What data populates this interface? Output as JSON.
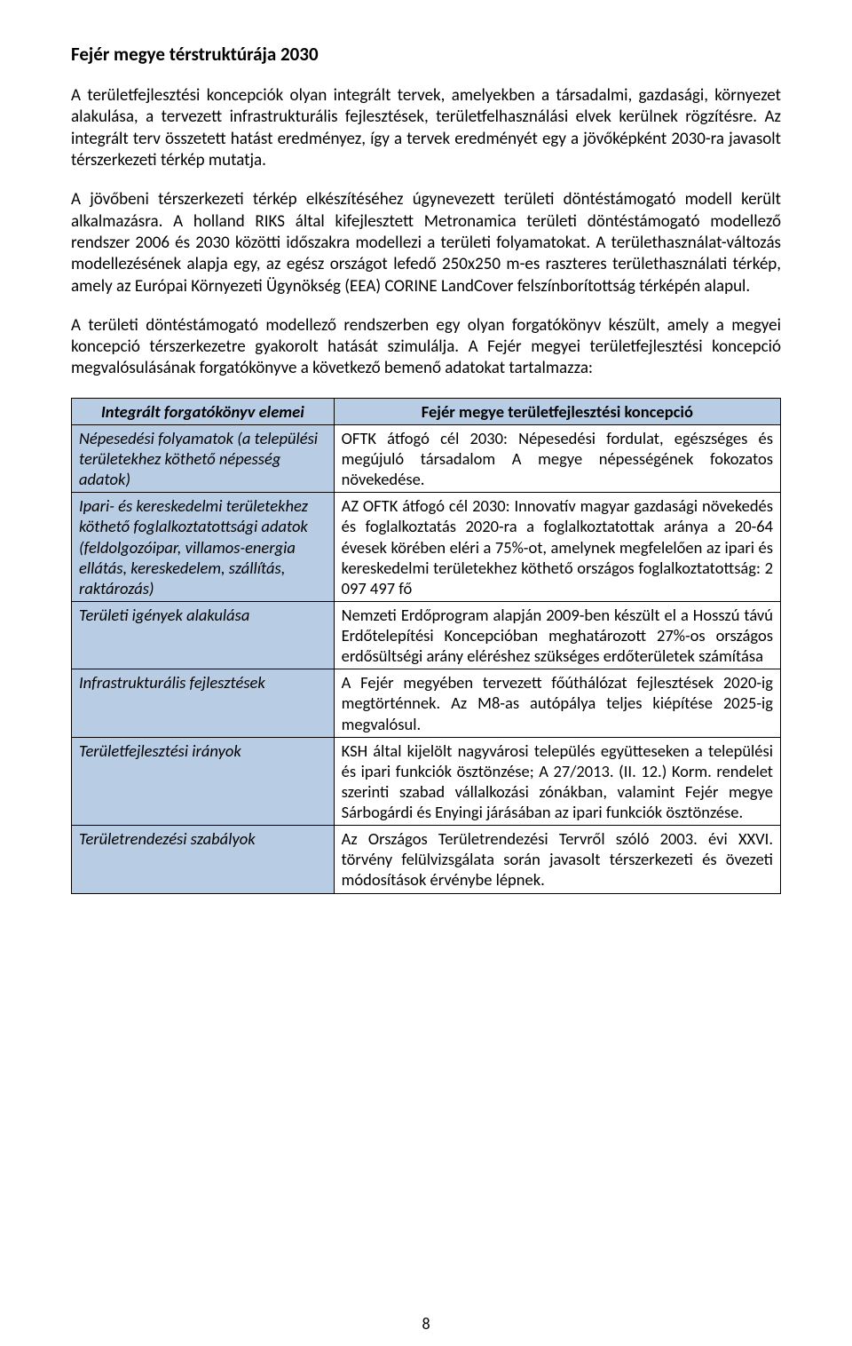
{
  "title": "Fejér megye térstruktúrája 2030",
  "paragraphs": {
    "p1": "A területfejlesztési koncepciók olyan integrált tervek, amelyekben a társadalmi, gazdasági, környezet alakulása, a tervezett infrastrukturális fejlesztések, területfelhasználási elvek kerülnek rögzítésre. Az integrált terv összetett hatást eredményez, így a tervek eredményét egy a jövőképként 2030-ra javasolt térszerkezeti térkép mutatja.",
    "p2": "A jövőbeni térszerkezeti térkép elkészítéséhez úgynevezett területi döntéstámogató modell került alkalmazásra. A holland RIKS által kifejlesztett Metronamica területi döntéstámogató modellező rendszer 2006 és 2030 közötti időszakra modellezi a területi folyamatokat. A területhasználat-változás modellezésének alapja egy, az egész országot lefedő 250x250 m-es raszteres területhasználati térkép, amely az Európai Környezeti Ügynökség (EEA) CORINE LandCover felszínborítottság térképén alapul.",
    "p3": "A területi döntéstámogató modellező rendszerben egy olyan forgatókönyv készült, amely a megyei koncepció térszerkezetre gyakorolt hatását szimulálja. A Fejér megyei területfejlesztési koncepció megvalósulásának forgatókönyve a következő bemenő adatokat tartalmazza:"
  },
  "table": {
    "header_left": "Integrált forgatókönyv elemei",
    "header_right": "Fejér megye területfejlesztési koncepció",
    "rows": [
      {
        "label": "Népesedési folyamatok (a települési területekhez köthető népesség adatok)",
        "value": "OFTK átfogó cél 2030: Népesedési fordulat, egészséges és megújuló társadalom\nA megye népességének fokozatos növekedése."
      },
      {
        "label": "Ipari- és kereskedelmi területekhez köthető foglalkoztatottsági adatok (feldolgozóipar, villamos-energia ellátás, kereskedelem, szállítás, raktározás)",
        "value": "AZ OFTK átfogó cél 2030: Innovatív magyar gazdasági növekedés és foglalkoztatás\n2020-ra a foglalkoztatottak aránya a 20-64 évesek körében eléri a 75%-ot, amelynek megfelelően az ipari és kereskedelmi területekhez köthető országos foglalkoztatottság: 2 097 497 fő"
      },
      {
        "label": "Területi igények alakulása",
        "value": "Nemzeti Erdőprogram alapján 2009-ben készült el a Hosszú távú Erdőtelepítési Koncepcióban meghatározott 27%-os országos erdősültségi arány eléréshez szükséges erdőterületek számítása"
      },
      {
        "label": "Infrastrukturális fejlesztések",
        "value": "A Fejér megyében tervezett főúthálózat fejlesztések 2020-ig megtörténnek. Az M8-as autópálya teljes kiépítése 2025-ig megvalósul."
      },
      {
        "label": "Területfejlesztési irányok",
        "value": "KSH által kijelölt nagyvárosi település együtteseken a települési és ipari funkciók ösztönzése;\nA 27/2013. (II. 12.) Korm. rendelet szerinti szabad vállalkozási zónákban, valamint Fejér megye Sárbogárdi és Enyingi járásában az ipari funkciók ösztönzése."
      },
      {
        "label": "Területrendezési szabályok",
        "value": "Az Országos Területrendezési Tervről szóló 2003. évi XXVI. törvény felülvizsgálata során javasolt térszerkezeti és övezeti módosítások érvénybe lépnek."
      }
    ]
  },
  "page_number": "8"
}
